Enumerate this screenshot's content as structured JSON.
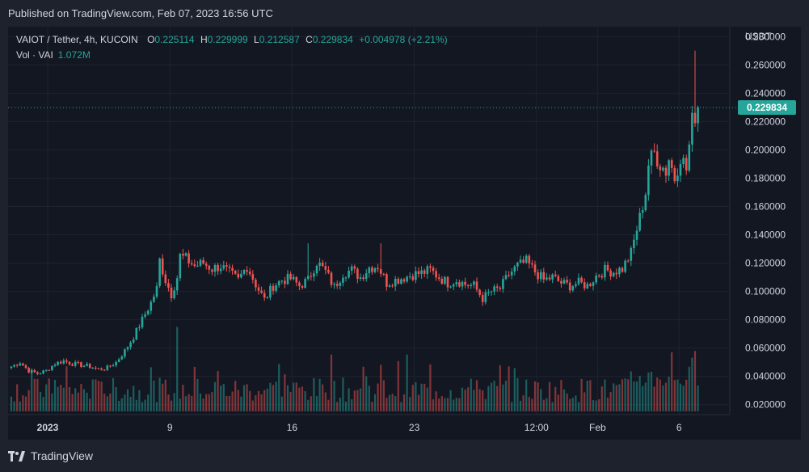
{
  "header": {
    "published": "Published on TradingView.com, Feb 07, 2023 16:56 UTC"
  },
  "legend": {
    "symbol": "VAIOT / Tether, 4h, KUCOIN",
    "open_label": "O",
    "open": "0.225114",
    "high_label": "H",
    "high": "0.229999",
    "low_label": "L",
    "low": "0.212587",
    "close_label": "C",
    "close": "0.229834",
    "change": "+0.004978 (+2.21%)",
    "volume_label": "Vol · VAI",
    "volume": "1.072M"
  },
  "price_axis": {
    "currency": "USDT",
    "last_price_label": "0.229834"
  },
  "footer": {
    "brand": "TradingView"
  },
  "colors": {
    "up": "#26a69a",
    "down": "#ef5350",
    "background": "#131722",
    "frame": "#1e222d"
  },
  "chart_data": {
    "type": "candlestick",
    "interval": "4h",
    "ylim": [
      0.013,
      0.287
    ],
    "y_ticks": [
      "0.280000",
      "0.260000",
      "0.240000",
      "0.220000",
      "0.200000",
      "0.180000",
      "0.160000",
      "0.140000",
      "0.120000",
      "0.100000",
      "0.080000",
      "0.060000",
      "0.040000",
      "0.020000"
    ],
    "y_tick_values": [
      0.28,
      0.26,
      0.24,
      0.22,
      0.2,
      0.18,
      0.16,
      0.14,
      0.12,
      0.1,
      0.08,
      0.06,
      0.04,
      0.02
    ],
    "x_tick_labels": [
      "2023",
      "9",
      "16",
      "23",
      "12:00",
      "Feb",
      "6"
    ],
    "x_tick_positions": [
      12.5,
      54.5,
      96.5,
      138.5,
      180.5,
      201.5,
      229.5
    ],
    "last_price": 0.229834,
    "close_path": [
      [
        0,
        0.047
      ],
      [
        3,
        0.05
      ],
      [
        6,
        0.044
      ],
      [
        9,
        0.042
      ],
      [
        12,
        0.044
      ],
      [
        15,
        0.049
      ],
      [
        18,
        0.051
      ],
      [
        21,
        0.049
      ],
      [
        24,
        0.048
      ],
      [
        27,
        0.047
      ],
      [
        30,
        0.045
      ],
      [
        33,
        0.046
      ],
      [
        36,
        0.05
      ],
      [
        39,
        0.058
      ],
      [
        42,
        0.068
      ],
      [
        45,
        0.08
      ],
      [
        48,
        0.092
      ],
      [
        50,
        0.102
      ],
      [
        51,
        0.122
      ],
      [
        53,
        0.108
      ],
      [
        55,
        0.098
      ],
      [
        57,
        0.11
      ],
      [
        58,
        0.125
      ],
      [
        60,
        0.123
      ],
      [
        63,
        0.118
      ],
      [
        66,
        0.12
      ],
      [
        69,
        0.116
      ],
      [
        72,
        0.118
      ],
      [
        75,
        0.113
      ],
      [
        78,
        0.108
      ],
      [
        81,
        0.118
      ],
      [
        84,
        0.105
      ],
      [
        87,
        0.094
      ],
      [
        90,
        0.104
      ],
      [
        93,
        0.108
      ],
      [
        96,
        0.109
      ],
      [
        99,
        0.104
      ],
      [
        102,
        0.108
      ],
      [
        105,
        0.121
      ],
      [
        108,
        0.114
      ],
      [
        111,
        0.103
      ],
      [
        114,
        0.113
      ],
      [
        117,
        0.115
      ],
      [
        120,
        0.11
      ],
      [
        123,
        0.117
      ],
      [
        126,
        0.118
      ],
      [
        129,
        0.106
      ],
      [
        132,
        0.108
      ],
      [
        135,
        0.11
      ],
      [
        138,
        0.112
      ],
      [
        141,
        0.113
      ],
      [
        144,
        0.115
      ],
      [
        147,
        0.11
      ],
      [
        150,
        0.106
      ],
      [
        153,
        0.108
      ],
      [
        156,
        0.105
      ],
      [
        159,
        0.104
      ],
      [
        162,
        0.095
      ],
      [
        165,
        0.1
      ],
      [
        168,
        0.102
      ],
      [
        171,
        0.112
      ],
      [
        174,
        0.118
      ],
      [
        177,
        0.121
      ],
      [
        180,
        0.114
      ],
      [
        183,
        0.108
      ],
      [
        186,
        0.11
      ],
      [
        189,
        0.106
      ],
      [
        192,
        0.104
      ],
      [
        195,
        0.106
      ],
      [
        198,
        0.104
      ],
      [
        201,
        0.111
      ],
      [
        204,
        0.115
      ],
      [
        207,
        0.114
      ],
      [
        210,
        0.116
      ],
      [
        213,
        0.127
      ],
      [
        215,
        0.144
      ],
      [
        216,
        0.152
      ],
      [
        218,
        0.17
      ],
      [
        219,
        0.19
      ],
      [
        221,
        0.198
      ],
      [
        223,
        0.19
      ],
      [
        225,
        0.185
      ],
      [
        226,
        0.194
      ],
      [
        228,
        0.18
      ],
      [
        230,
        0.196
      ],
      [
        232,
        0.186
      ],
      [
        234,
        0.22
      ],
      [
        235,
        0.225
      ],
      [
        236,
        0.23
      ]
    ],
    "spikes": [
      {
        "bar": 235,
        "high": 0.27
      },
      {
        "bar": 102,
        "high": 0.134
      },
      {
        "bar": 127,
        "high": 0.134
      }
    ],
    "volume_spikes": [
      {
        "bar": 57,
        "value": 0.55
      },
      {
        "bar": 63,
        "value": 0.29
      },
      {
        "bar": 110,
        "value": 0.37
      },
      {
        "bar": 136,
        "value": 0.37
      },
      {
        "bar": 234,
        "value": 0.35
      }
    ]
  }
}
